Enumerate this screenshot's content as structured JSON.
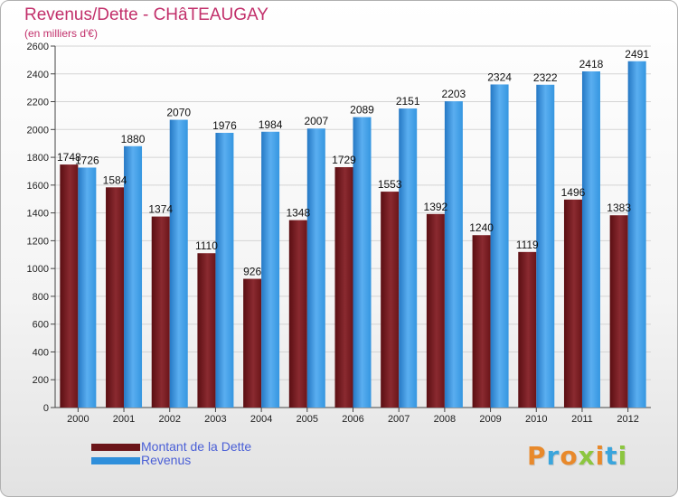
{
  "title": "Revenus/Dette - CHâTEAUGAY",
  "subtitle": "(en milliers d'€)",
  "logo": {
    "text": "Proxiti",
    "colors": [
      "#e8892b",
      "#3aa5dc",
      "#e8892b",
      "#8cc63f",
      "#e8892b",
      "#3aa5dc",
      "#8cc63f"
    ]
  },
  "colors": {
    "dette": "#6b1519",
    "revenus": "#2f8fdb",
    "grid": "#d4d4d4",
    "tick": "#222222"
  },
  "chart_data": {
    "type": "bar",
    "title": "Revenus/Dette - CHâTEAUGAY",
    "ylabel": "(en milliers d'€)",
    "xlabel": "",
    "ylim": [
      0,
      2600
    ],
    "yticks": [
      0,
      200,
      400,
      600,
      800,
      1000,
      1200,
      1400,
      1600,
      1800,
      2000,
      2200,
      2400,
      2600
    ],
    "grid": true,
    "legend_position": "bottom-left",
    "categories": [
      "2000",
      "2001",
      "2002",
      "2003",
      "2004",
      "2005",
      "2006",
      "2007",
      "2008",
      "2009",
      "2010",
      "2011",
      "2012"
    ],
    "series": [
      {
        "name": "Montant de la Dette",
        "values": [
          1748,
          1584,
          1374,
          1110,
          926,
          1348,
          1729,
          1553,
          1392,
          1240,
          1119,
          1496,
          1383
        ]
      },
      {
        "name": "Revenus",
        "values": [
          1726,
          1880,
          2070,
          1976,
          1984,
          2007,
          2089,
          2151,
          2203,
          2324,
          2322,
          2418,
          2491
        ]
      }
    ]
  }
}
